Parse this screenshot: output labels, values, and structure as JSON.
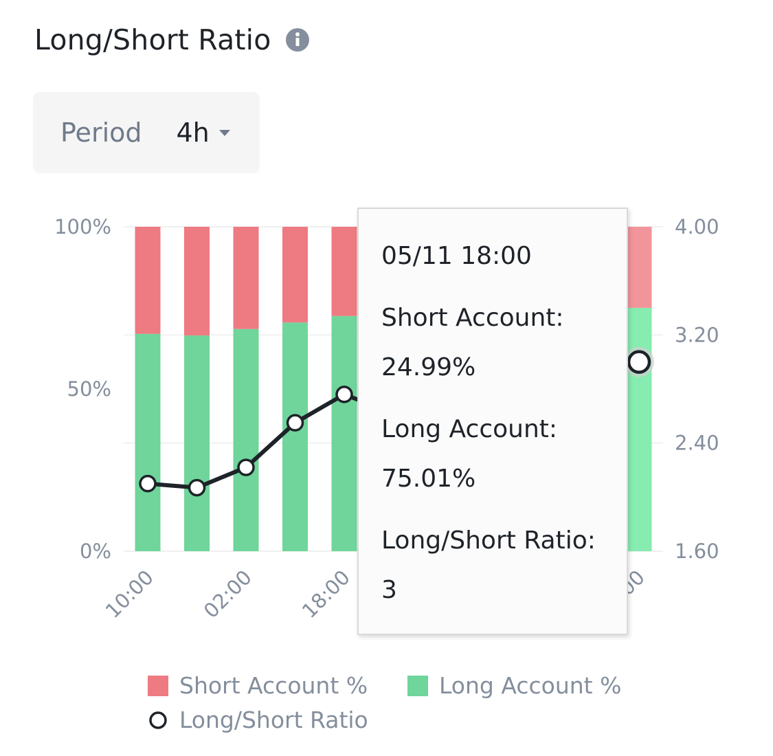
{
  "header": {
    "title": "Long/Short Ratio",
    "info_icon": "info-circle-icon"
  },
  "period": {
    "label": "Period",
    "value": "4h",
    "caret_icon": "caret-down-icon"
  },
  "colors": {
    "short": "#ee7a82",
    "long": "#6fd59a",
    "short_highlight": "#f2959b",
    "long_highlight": "#86ecb0",
    "line": "#1e2329",
    "grid": "#f0f0f0",
    "axis_text": "#848e9c"
  },
  "chart_data": {
    "type": "bar",
    "stacked": true,
    "categories": [
      "10:00",
      "",
      "02:00",
      "",
      "18:00",
      "",
      "",
      "",
      "",
      "",
      ""
    ],
    "series": [
      {
        "name": "Long Account %",
        "values": [
          67,
          66.5,
          68.5,
          70.5,
          72.5,
          null,
          null,
          null,
          null,
          null,
          75.01
        ]
      },
      {
        "name": "Short Account %",
        "values": [
          33,
          33.5,
          31.5,
          29.5,
          27.5,
          null,
          null,
          null,
          null,
          null,
          24.99
        ]
      },
      {
        "name": "Long/Short Ratio",
        "type": "line",
        "axis": "right",
        "values": [
          2.1,
          2.07,
          2.22,
          2.55,
          2.76,
          null,
          null,
          null,
          null,
          null,
          3.0
        ]
      }
    ],
    "x_tick_labels": [
      "10:00",
      "02:00",
      "18:00",
      "00"
    ],
    "y_left": {
      "ticks": [
        "100%",
        "50%",
        "0%"
      ],
      "range": [
        0,
        100
      ]
    },
    "y_right": {
      "ticks": [
        "4.00",
        "3.20",
        "2.40",
        "1.60"
      ],
      "range": [
        1.6,
        4.0
      ]
    },
    "legend": {
      "position": "bottom",
      "items": [
        "Short Account %",
        "Long Account %",
        "Long/Short Ratio"
      ]
    },
    "tooltip": {
      "date": "05/11 18:00",
      "short_label": "Short Account:",
      "short_value": "24.99%",
      "long_label": "Long Account:",
      "long_value": "75.01%",
      "ratio_label": "Long/Short Ratio:",
      "ratio_value": "3"
    }
  }
}
